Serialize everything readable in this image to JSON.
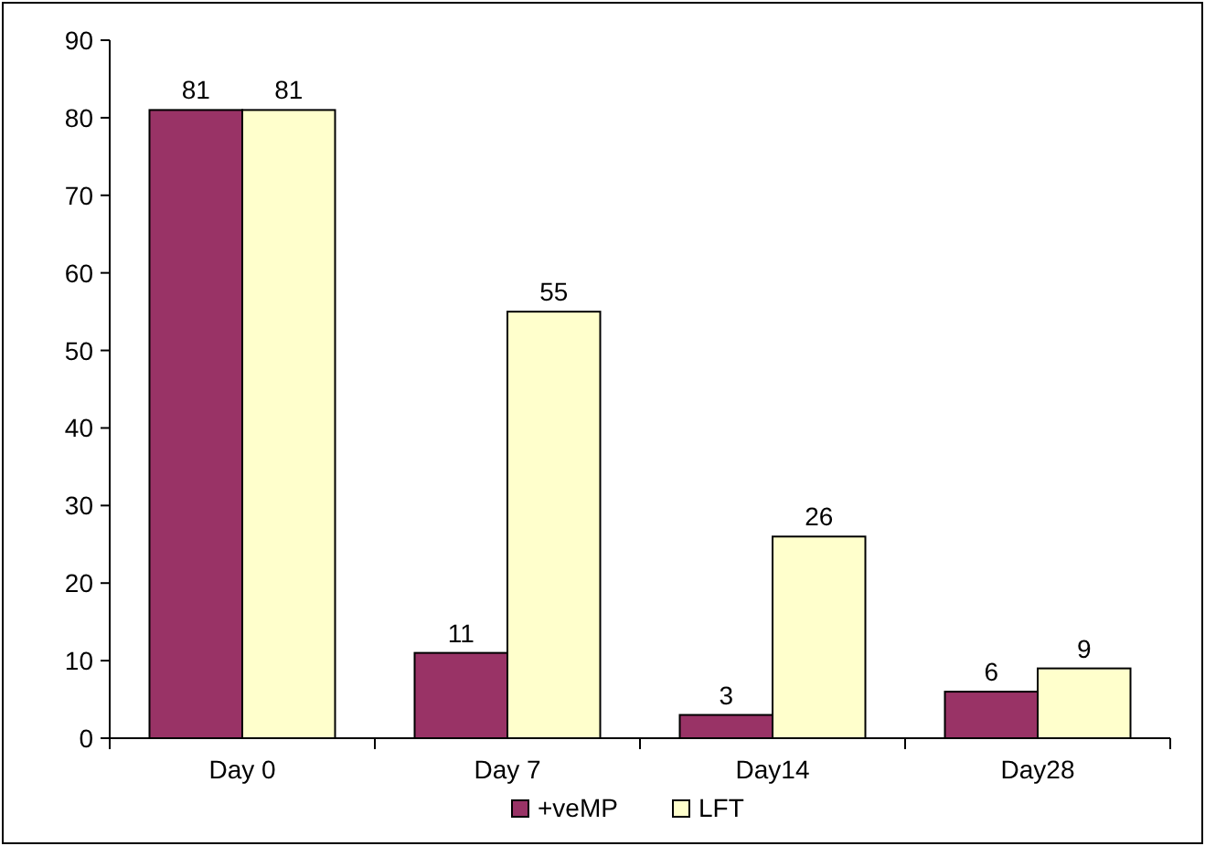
{
  "chart_data": {
    "type": "bar",
    "categories": [
      "Day 0",
      "Day 7",
      "Day14",
      "Day28"
    ],
    "series": [
      {
        "name": "+veMP",
        "color": "#993366",
        "values": [
          81,
          11,
          3,
          6
        ]
      },
      {
        "name": "LFT",
        "color": "#ffffcc",
        "values": [
          81,
          55,
          26,
          9
        ]
      }
    ],
    "ylim": [
      0,
      90
    ],
    "yticks": [
      0,
      10,
      20,
      30,
      40,
      50,
      60,
      70,
      80,
      90
    ],
    "data_labels": true,
    "legend": "bottom",
    "grid": false
  }
}
